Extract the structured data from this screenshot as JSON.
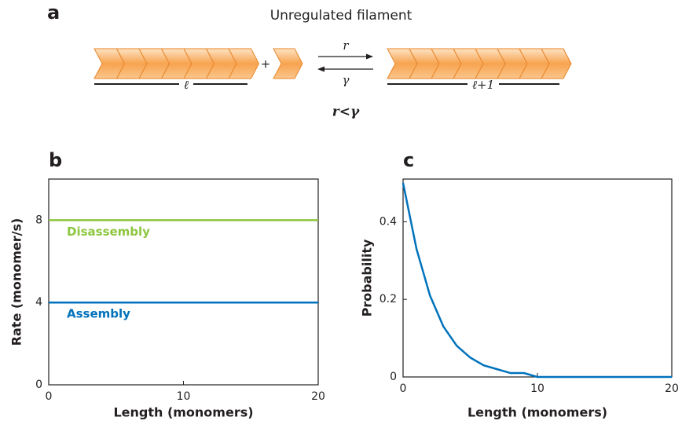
{
  "diagram": {
    "panel_label": "a",
    "title": "Unregulated filament",
    "left_length": "ℓ",
    "plus": "+",
    "forward_rate": "r",
    "backward_rate": "γ",
    "right_length": "ℓ+1",
    "condition": "r<γ"
  },
  "chart_data": [
    {
      "type": "line",
      "panel_label": "b",
      "x_label": "Length (monomers)",
      "y_label": "Rate (monomer/s)",
      "x": [
        0,
        20
      ],
      "series": [
        {
          "name": "Disassembly",
          "color": "#8dc63f",
          "values": [
            8,
            8
          ]
        },
        {
          "name": "Assembly",
          "color": "#0072bc",
          "values": [
            4,
            4
          ]
        }
      ],
      "xlim": [
        0,
        20
      ],
      "xticks": [
        0,
        10,
        20
      ],
      "ylim": [
        0,
        10
      ],
      "yticks": [
        0,
        4,
        8
      ],
      "frame": "box"
    },
    {
      "type": "line",
      "panel_label": "c",
      "x_label": "Length (monomers)",
      "y_label": "Probability",
      "x": [
        0,
        1,
        2,
        3,
        4,
        5,
        6,
        7,
        8,
        9,
        10,
        11,
        12,
        13,
        14,
        15,
        16,
        17,
        18,
        19,
        20
      ],
      "series": [
        {
          "name": null,
          "color": "#0072bc",
          "values": [
            0.5,
            0.33,
            0.21,
            0.13,
            0.08,
            0.05,
            0.03,
            0.02,
            0.01,
            0.01,
            0,
            0,
            0,
            0,
            0,
            0,
            0,
            0,
            0,
            0,
            0
          ]
        }
      ],
      "xlim": [
        0,
        20
      ],
      "xticks": [
        0,
        10,
        20
      ],
      "ylim": [
        0,
        0.51
      ],
      "yticks": [
        0,
        0.2,
        0.4
      ],
      "frame": "box"
    }
  ]
}
